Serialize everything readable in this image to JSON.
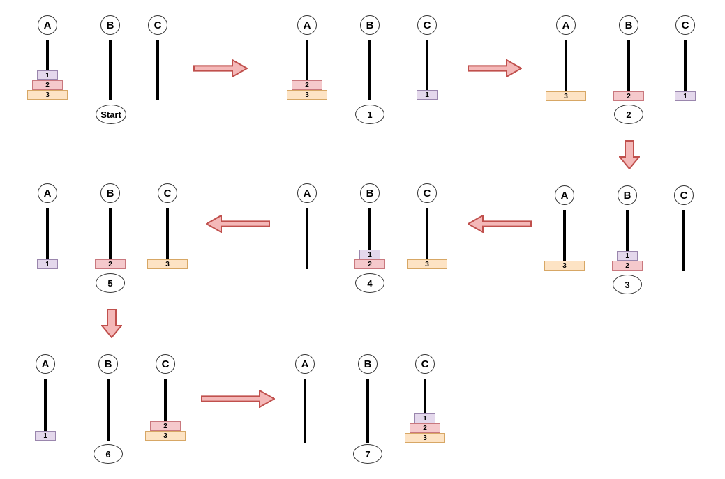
{
  "pegs": [
    "A",
    "B",
    "C"
  ],
  "colors": {
    "disk1": "#e4d8ec",
    "disk2": "#f5c9cc",
    "disk3": "#fde3c4",
    "arrow_fill": "#f4b8b8",
    "arrow_stroke": "#c0504d"
  },
  "states": [
    {
      "label": "Start",
      "pegs": [
        [
          3,
          2,
          1
        ],
        [],
        []
      ]
    },
    {
      "label": "1",
      "pegs": [
        [
          3,
          2
        ],
        [],
        [
          1
        ]
      ]
    },
    {
      "label": "2",
      "pegs": [
        [
          3
        ],
        [
          2
        ],
        [
          1
        ]
      ]
    },
    {
      "label": "3",
      "pegs": [
        [
          3
        ],
        [
          2,
          1
        ],
        []
      ]
    },
    {
      "label": "4",
      "pegs": [
        [],
        [
          2,
          1
        ],
        [
          3
        ]
      ]
    },
    {
      "label": "5",
      "pegs": [
        [
          1
        ],
        [
          2
        ],
        [
          3
        ]
      ]
    },
    {
      "label": "6",
      "pegs": [
        [
          1
        ],
        [],
        [
          3,
          2
        ]
      ]
    },
    {
      "label": "7",
      "pegs": [
        [],
        [],
        [
          3,
          2,
          1
        ]
      ]
    }
  ],
  "arrows": [
    {
      "direction": "right"
    },
    {
      "direction": "right"
    },
    {
      "direction": "down"
    },
    {
      "direction": "left"
    },
    {
      "direction": "left"
    },
    {
      "direction": "down"
    },
    {
      "direction": "right"
    }
  ]
}
